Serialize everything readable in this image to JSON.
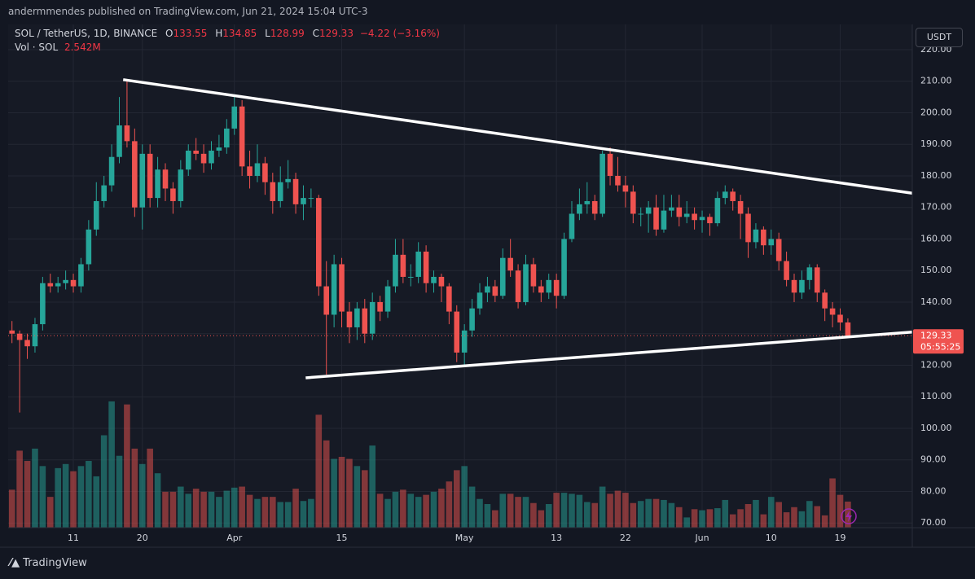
{
  "header": {
    "publisher": "andermmendes published on TradingView.com, Jun 21, 2024 15:04 UTC-3",
    "symbol": "SOL / TetherUS, 1D, BINANCE",
    "ohlc_letters": [
      "O",
      "H",
      "L",
      "C"
    ],
    "change": "−4.22 (−3.16%)",
    "volume_title": "Vol · SOL",
    "volume_value": "2.542M",
    "currency": "USDT",
    "countdown": "05:55:25",
    "brand": "TradingView"
  },
  "chart_data": {
    "type": "candlestick",
    "open": [
      131,
      130,
      128,
      126,
      133,
      146,
      145,
      146,
      147,
      145,
      152,
      163,
      172,
      177,
      186,
      196,
      191,
      170,
      187,
      173,
      182,
      176,
      172,
      182,
      188,
      187,
      184,
      188,
      189,
      195,
      202,
      183,
      180,
      184,
      178,
      172,
      178,
      179,
      171,
      173,
      173,
      145,
      136,
      152,
      137,
      132,
      138,
      130,
      140,
      137,
      145,
      155,
      148,
      148,
      156,
      146,
      148,
      145,
      137,
      124,
      131,
      138,
      143,
      145,
      142,
      154,
      150,
      140,
      152,
      145,
      143,
      147,
      142,
      160,
      168,
      171,
      172,
      168,
      187,
      180,
      177,
      175,
      168,
      168,
      170,
      163,
      169,
      170,
      167,
      168,
      166,
      167,
      165,
      173,
      175,
      172,
      168,
      159,
      163,
      158,
      160,
      153,
      147,
      143,
      147,
      151,
      143,
      138,
      136,
      133.55
    ],
    "high": [
      134,
      131,
      130,
      135,
      148,
      149,
      148,
      150,
      149,
      154,
      166,
      178,
      180,
      190,
      205,
      210,
      195,
      190,
      190,
      186,
      184,
      178,
      185,
      190,
      192,
      190,
      191,
      193,
      198,
      205,
      204,
      188,
      190,
      186,
      181,
      183,
      185,
      181,
      177,
      176,
      174,
      153,
      155,
      154,
      140,
      140,
      141,
      143,
      142,
      147,
      160,
      160,
      152,
      159,
      158,
      150,
      149,
      146,
      139,
      133,
      141,
      146,
      148,
      147,
      157,
      160,
      152,
      155,
      154,
      147,
      149,
      149,
      162,
      172,
      176,
      178,
      174,
      188,
      189,
      186,
      180,
      177,
      170,
      172,
      174,
      174,
      174,
      174,
      172,
      170,
      169,
      168,
      175,
      177,
      176,
      174,
      170,
      165,
      164,
      163,
      162,
      156,
      149,
      150,
      152,
      152,
      144,
      140,
      138,
      134.85
    ],
    "low": [
      127,
      105,
      122,
      124,
      131,
      143,
      143,
      144,
      143,
      143,
      150,
      161,
      170,
      175,
      184,
      189,
      167,
      163,
      170,
      170,
      172,
      168,
      170,
      180,
      185,
      181,
      182,
      186,
      187,
      193,
      180,
      176,
      178,
      174,
      168,
      170,
      176,
      168,
      166,
      170,
      142,
      117,
      132,
      132,
      127,
      128,
      127,
      128,
      134,
      135,
      143,
      146,
      145,
      146,
      143,
      143,
      140,
      133,
      121,
      120,
      129,
      136,
      140,
      140,
      141,
      148,
      138,
      139,
      143,
      140,
      141,
      138,
      141,
      159,
      166,
      168,
      166,
      167,
      177,
      175,
      170,
      165,
      164,
      162,
      161,
      162,
      167,
      164,
      165,
      163,
      162,
      161,
      164,
      171,
      169,
      160,
      154,
      157,
      155,
      155,
      150,
      145,
      140,
      141,
      144,
      140,
      134,
      132,
      131,
      128.99
    ],
    "close": [
      130,
      128,
      126,
      133,
      146,
      145,
      146,
      147,
      145,
      152,
      163,
      172,
      177,
      186,
      196,
      191,
      170,
      187,
      173,
      182,
      176,
      172,
      182,
      188,
      187,
      184,
      188,
      189,
      195,
      202,
      183,
      180,
      184,
      178,
      172,
      178,
      179,
      171,
      173,
      173,
      145,
      136,
      152,
      137,
      132,
      138,
      130,
      140,
      137,
      145,
      155,
      148,
      148,
      156,
      146,
      148,
      145,
      137,
      124,
      131,
      138,
      143,
      145,
      142,
      154,
      150,
      140,
      152,
      145,
      143,
      147,
      142,
      160,
      168,
      171,
      172,
      168,
      187,
      180,
      177,
      175,
      168,
      168,
      170,
      163,
      169,
      170,
      167,
      168,
      166,
      167,
      165,
      173,
      175,
      172,
      168,
      159,
      163,
      158,
      160,
      153,
      147,
      143,
      147,
      151,
      143,
      138,
      136,
      133.55,
      129.33
    ],
    "volume": [
      3.7,
      7.5,
      6.5,
      7.7,
      6.0,
      3.0,
      5.8,
      6.2,
      5.5,
      6.0,
      6.5,
      5.0,
      9.0,
      12.3,
      7.0,
      12.0,
      7.7,
      6.2,
      7.7,
      5.3,
      3.5,
      3.5,
      4.0,
      3.3,
      3.8,
      3.5,
      3.5,
      3.0,
      3.6,
      3.9,
      4.0,
      3.2,
      2.8,
      3.0,
      3.0,
      2.5,
      2.5,
      3.8,
      2.6,
      2.8,
      11.0,
      8.5,
      6.7,
      6.9,
      6.7,
      6.0,
      5.6,
      8.0,
      3.3,
      2.8,
      3.5,
      3.7,
      3.3,
      3.0,
      3.2,
      3.5,
      3.8,
      4.5,
      5.6,
      6.0,
      4.0,
      2.8,
      2.3,
      1.7,
      3.3,
      3.3,
      3.0,
      3.0,
      2.4,
      1.7,
      2.3,
      3.4,
      3.4,
      3.3,
      3.2,
      2.5,
      2.4,
      4.0,
      3.3,
      3.6,
      3.4,
      2.4,
      2.6,
      2.8,
      2.8,
      2.7,
      2.4,
      2.0,
      1.0,
      1.8,
      1.7,
      1.8,
      1.9,
      2.7,
      1.3,
      1.8,
      2.3,
      2.7,
      1.3,
      3.0,
      2.5,
      1.5,
      2.0,
      1.6,
      2.6,
      2.1,
      1.2,
      4.8,
      3.2,
      2.542
    ],
    "volume_lim": [
      0,
      49
    ],
    "up_color": "#26a69a",
    "down_color": "#ef5350",
    "xlim": [
      -0.5,
      117.4
    ],
    "xticks": [
      {
        "value": 8,
        "label": "11"
      },
      {
        "value": 17,
        "label": "20"
      },
      {
        "value": 29,
        "label": "Apr"
      },
      {
        "value": 43,
        "label": "15"
      },
      {
        "value": 59,
        "label": "May"
      },
      {
        "value": 71,
        "label": "13"
      },
      {
        "value": 80,
        "label": "22"
      },
      {
        "value": 90,
        "label": "Jun"
      },
      {
        "value": 99,
        "label": "10"
      },
      {
        "value": 108,
        "label": "19"
      }
    ],
    "ylim": [
      68.5,
      228
    ],
    "yticks": [
      {
        "value": 70,
        "label": "70.00"
      },
      {
        "value": 80,
        "label": "80.00"
      },
      {
        "value": 90,
        "label": "90.00"
      },
      {
        "value": 100,
        "label": "100.00"
      },
      {
        "value": 110,
        "label": "110.00"
      },
      {
        "value": 120,
        "label": "120.00"
      },
      {
        "value": 130,
        "label": "130.00"
      },
      {
        "value": 140,
        "label": "140.00"
      },
      {
        "value": 150,
        "label": "150.00"
      },
      {
        "value": 160,
        "label": "160.00"
      },
      {
        "value": 170,
        "label": "170.00"
      },
      {
        "value": 180,
        "label": "180.00"
      },
      {
        "value": 190,
        "label": "190.00"
      },
      {
        "value": 200,
        "label": "200.00"
      },
      {
        "value": 210,
        "label": "210.00"
      },
      {
        "value": 220,
        "label": "220.00"
      }
    ],
    "grid": true,
    "trendlines": [
      {
        "x": [
          14.5,
          117.4
        ],
        "y": [
          210.5,
          174.5
        ]
      },
      {
        "x": [
          38.3,
          117.4
        ],
        "y": [
          116,
          130.5
        ]
      }
    ]
  }
}
